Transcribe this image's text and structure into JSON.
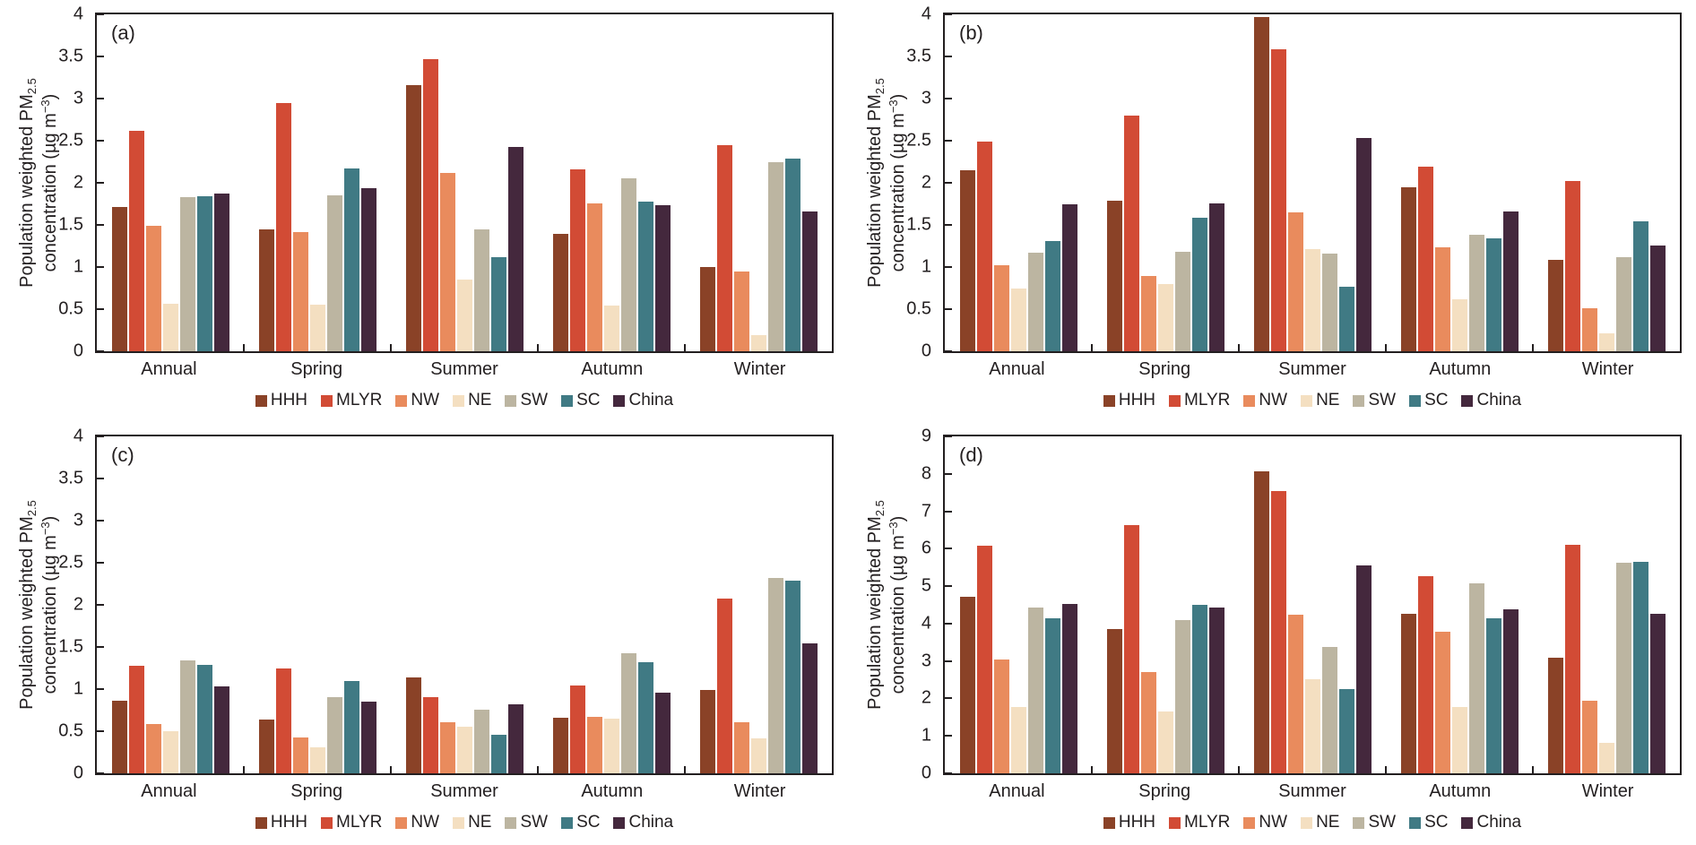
{
  "figure": {
    "background": "#ffffff",
    "axis_color": "#231f20",
    "ylabel": {
      "line1_main": "Population weighted PM",
      "line1_sub": "2.5",
      "line2_main": "concentration (µg m",
      "line2_sup": "−3",
      "line2_close": ")"
    },
    "series_colors": {
      "HHH": "#8a4227",
      "MLYR": "#d24b35",
      "NW": "#e98b5d",
      "NE": "#f4dfc1",
      "SW": "#bcb5a1",
      "SC": "#407a84",
      "China": "#44283d"
    }
  },
  "chart_data": [
    {
      "type": "bar",
      "panel_label": "(a)",
      "title": "",
      "xlabel": "",
      "ylabel": "Population weighted PM2.5 concentration (µg m−3)",
      "ylim": [
        0,
        4
      ],
      "ytick_step": 0.5,
      "grid": false,
      "legend_position": "bottom",
      "categories": [
        "Annual",
        "Spring",
        "Summer",
        "Autumn",
        "Winter"
      ],
      "series": [
        {
          "name": "HHH",
          "color": "#8a4227",
          "values": [
            1.71,
            1.45,
            3.16,
            1.39,
            1.0
          ]
        },
        {
          "name": "MLYR",
          "color": "#d24b35",
          "values": [
            2.62,
            2.95,
            3.47,
            2.16,
            2.45
          ]
        },
        {
          "name": "NW",
          "color": "#e98b5d",
          "values": [
            1.49,
            1.41,
            2.12,
            1.76,
            0.95
          ]
        },
        {
          "name": "NE",
          "color": "#f4dfc1",
          "values": [
            0.56,
            0.55,
            0.85,
            0.54,
            0.19
          ]
        },
        {
          "name": "SW",
          "color": "#bcb5a1",
          "values": [
            1.83,
            1.85,
            1.45,
            2.05,
            2.24
          ]
        },
        {
          "name": "SC",
          "color": "#407a84",
          "values": [
            1.84,
            2.17,
            1.12,
            1.78,
            2.29
          ]
        },
        {
          "name": "China",
          "color": "#44283d",
          "values": [
            1.87,
            1.94,
            2.43,
            1.73,
            1.66
          ]
        }
      ]
    },
    {
      "type": "bar",
      "panel_label": "(b)",
      "title": "",
      "xlabel": "",
      "ylabel": "Population weighted PM2.5 concentration (µg m−3)",
      "ylim": [
        0,
        4
      ],
      "ytick_step": 0.5,
      "grid": false,
      "legend_position": "bottom",
      "categories": [
        "Annual",
        "Spring",
        "Summer",
        "Autumn",
        "Winter"
      ],
      "series": [
        {
          "name": "HHH",
          "color": "#8a4227",
          "values": [
            2.15,
            1.79,
            3.97,
            1.95,
            1.08
          ]
        },
        {
          "name": "MLYR",
          "color": "#d24b35",
          "values": [
            2.49,
            2.8,
            3.58,
            2.19,
            2.02
          ]
        },
        {
          "name": "NW",
          "color": "#e98b5d",
          "values": [
            1.02,
            0.89,
            1.65,
            1.23,
            0.51
          ]
        },
        {
          "name": "NE",
          "color": "#f4dfc1",
          "values": [
            0.74,
            0.8,
            1.21,
            0.62,
            0.21
          ]
        },
        {
          "name": "SW",
          "color": "#bcb5a1",
          "values": [
            1.17,
            1.18,
            1.16,
            1.38,
            1.12
          ]
        },
        {
          "name": "SC",
          "color": "#407a84",
          "values": [
            1.31,
            1.59,
            0.77,
            1.34,
            1.54
          ]
        },
        {
          "name": "China",
          "color": "#44283d",
          "values": [
            1.74,
            1.76,
            2.53,
            1.66,
            1.26
          ]
        }
      ]
    },
    {
      "type": "bar",
      "panel_label": "(c)",
      "title": "",
      "xlabel": "",
      "ylabel": "Population weighted PM2.5 concentration (µg m−3)",
      "ylim": [
        0,
        4
      ],
      "ytick_step": 0.5,
      "grid": false,
      "legend_position": "bottom",
      "categories": [
        "Annual",
        "Spring",
        "Summer",
        "Autumn",
        "Winter"
      ],
      "series": [
        {
          "name": "HHH",
          "color": "#8a4227",
          "values": [
            0.86,
            0.64,
            1.14,
            0.66,
            0.99
          ]
        },
        {
          "name": "MLYR",
          "color": "#d24b35",
          "values": [
            1.28,
            1.25,
            0.9,
            1.04,
            2.07
          ]
        },
        {
          "name": "NW",
          "color": "#e98b5d",
          "values": [
            0.58,
            0.43,
            0.61,
            0.67,
            0.61
          ]
        },
        {
          "name": "NE",
          "color": "#f4dfc1",
          "values": [
            0.5,
            0.31,
            0.55,
            0.65,
            0.42
          ]
        },
        {
          "name": "SW",
          "color": "#bcb5a1",
          "values": [
            1.34,
            0.9,
            0.76,
            1.43,
            2.32
          ]
        },
        {
          "name": "SC",
          "color": "#407a84",
          "values": [
            1.29,
            1.1,
            0.46,
            1.32,
            2.29
          ]
        },
        {
          "name": "China",
          "color": "#44283d",
          "values": [
            1.03,
            0.85,
            0.82,
            0.96,
            1.54
          ]
        }
      ]
    },
    {
      "type": "bar",
      "panel_label": "(d)",
      "title": "",
      "xlabel": "",
      "ylabel": "Population weighted PM2.5 concentration (µg m−3)",
      "ylim": [
        0,
        9
      ],
      "ytick_step": 1,
      "grid": false,
      "legend_position": "bottom",
      "categories": [
        "Annual",
        "Spring",
        "Summer",
        "Autumn",
        "Winter"
      ],
      "series": [
        {
          "name": "HHH",
          "color": "#8a4227",
          "values": [
            4.72,
            3.86,
            8.07,
            4.27,
            3.1
          ]
        },
        {
          "name": "MLYR",
          "color": "#d24b35",
          "values": [
            6.07,
            6.62,
            7.55,
            5.27,
            6.1
          ]
        },
        {
          "name": "NW",
          "color": "#e98b5d",
          "values": [
            3.05,
            2.7,
            4.23,
            3.78,
            1.95
          ]
        },
        {
          "name": "NE",
          "color": "#f4dfc1",
          "values": [
            1.77,
            1.65,
            2.52,
            1.76,
            0.82
          ]
        },
        {
          "name": "SW",
          "color": "#bcb5a1",
          "values": [
            4.43,
            4.09,
            3.37,
            5.07,
            5.62
          ]
        },
        {
          "name": "SC",
          "color": "#407a84",
          "values": [
            4.13,
            4.5,
            2.26,
            4.14,
            5.64
          ]
        },
        {
          "name": "China",
          "color": "#44283d",
          "values": [
            4.52,
            4.42,
            5.56,
            4.39,
            4.27
          ]
        }
      ]
    }
  ]
}
